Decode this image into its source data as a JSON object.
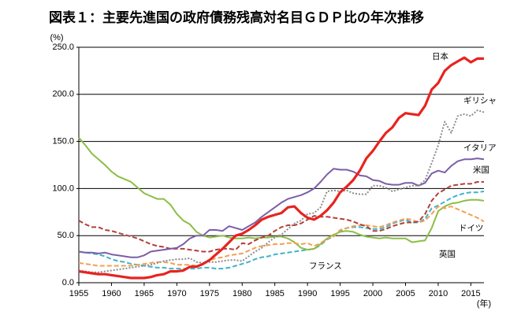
{
  "chart_data": {
    "type": "line",
    "title": "図表１：主要先進国の政府債務残高対名目ＧＤＰ比の年次推移",
    "y_unit_label": "(%)",
    "x_unit_label": "(年)",
    "x": [
      1955,
      1956,
      1957,
      1958,
      1959,
      1960,
      1961,
      1962,
      1963,
      1964,
      1965,
      1966,
      1967,
      1968,
      1969,
      1970,
      1971,
      1972,
      1973,
      1974,
      1975,
      1976,
      1977,
      1978,
      1979,
      1980,
      1981,
      1982,
      1983,
      1984,
      1985,
      1986,
      1987,
      1988,
      1989,
      1990,
      1991,
      1992,
      1993,
      1994,
      1995,
      1996,
      1997,
      1998,
      1999,
      2000,
      2001,
      2002,
      2003,
      2004,
      2005,
      2006,
      2007,
      2008,
      2009,
      2010,
      2011,
      2012,
      2013,
      2014,
      2015,
      2016,
      2017
    ],
    "xlim": [
      1955,
      2017
    ],
    "xticks": [
      1955,
      1960,
      1965,
      1970,
      1975,
      1980,
      1985,
      1990,
      1995,
      2000,
      2005,
      2010,
      2015
    ],
    "ylim": [
      0,
      250
    ],
    "yticks": [
      {
        "value": 0,
        "label": "0.0"
      },
      {
        "value": 50,
        "label": "50.0"
      },
      {
        "value": 100,
        "label": "100.0"
      },
      {
        "value": 150,
        "label": "150.0"
      },
      {
        "value": 200,
        "label": "200.0"
      },
      {
        "value": 250,
        "label": "250.0"
      }
    ],
    "grid": true,
    "series": [
      {
        "name": "日本",
        "color": "#e8231f",
        "line_style": "bold",
        "values": [
          12,
          11,
          10,
          9,
          9,
          8,
          7,
          6,
          5,
          5,
          5,
          6,
          8,
          9,
          12,
          12,
          13,
          17,
          17,
          20,
          24,
          30,
          36,
          43,
          50,
          52,
          56,
          61,
          67,
          70,
          72,
          74,
          80,
          81,
          74,
          69,
          67,
          71,
          77,
          85,
          96,
          102,
          109,
          119,
          132,
          140,
          150,
          159,
          165,
          175,
          180,
          179,
          178,
          188,
          205,
          212,
          225,
          231,
          235,
          239,
          234,
          238,
          238
        ]
      },
      {
        "name": "ギリシャ",
        "color": "#8c8c8c",
        "line_style": "dotted",
        "values": [
          13,
          12,
          11,
          11,
          12,
          13,
          14,
          15,
          16,
          17,
          18,
          19,
          21,
          23,
          24,
          25,
          25,
          26,
          22,
          21,
          22,
          22,
          23,
          24,
          24,
          23,
          28,
          33,
          37,
          43,
          48,
          51,
          57,
          63,
          66,
          73,
          74,
          80,
          97,
          98,
          97,
          98,
          95,
          94,
          94,
          103,
          103,
          101,
          97,
          99,
          101,
          103,
          103,
          109,
          127,
          146,
          171,
          159,
          177,
          179,
          177,
          183,
          181
        ]
      },
      {
        "name": "イタリア",
        "color": "#7b5ea7",
        "line_style": "solid",
        "values": [
          33,
          32,
          32,
          31,
          32,
          30,
          29,
          28,
          27,
          27,
          29,
          33,
          34,
          35,
          36,
          37,
          41,
          47,
          50,
          50,
          56,
          56,
          55,
          60,
          58,
          56,
          60,
          64,
          70,
          75,
          80,
          85,
          89,
          91,
          93,
          96,
          100,
          107,
          115,
          121,
          120,
          120,
          118,
          114,
          113,
          109,
          108,
          105,
          104,
          104,
          106,
          106,
          103,
          106,
          116,
          119,
          117,
          124,
          129,
          131,
          131,
          132,
          131
        ]
      },
      {
        "name": "米国",
        "color": "#b2403a",
        "line_style": "dashed",
        "values": [
          66,
          62,
          59,
          59,
          56,
          55,
          53,
          51,
          49,
          47,
          44,
          41,
          39,
          38,
          36,
          36,
          36,
          35,
          34,
          33,
          33,
          35,
          36,
          36,
          35,
          42,
          41,
          45,
          48,
          50,
          55,
          59,
          61,
          61,
          63,
          67,
          71,
          70,
          70,
          69,
          68,
          67,
          65,
          62,
          60,
          55,
          55,
          57,
          60,
          62,
          64,
          64,
          65,
          73,
          87,
          95,
          99,
          103,
          104,
          105,
          105,
          107,
          107
        ]
      },
      {
        "name": "ドイツ",
        "color": "#f2a054",
        "line_style": "dashed",
        "values": [
          21,
          20,
          19,
          18,
          18,
          18,
          18,
          18,
          18,
          19,
          20,
          21,
          22,
          22,
          21,
          19,
          19,
          19,
          18,
          19,
          24,
          26,
          27,
          29,
          30,
          31,
          34,
          37,
          39,
          40,
          41,
          41,
          42,
          42,
          41,
          42,
          39,
          42,
          47,
          49,
          56,
          58,
          60,
          61,
          61,
          60,
          59,
          61,
          64,
          66,
          68,
          67,
          64,
          66,
          73,
          81,
          79,
          81,
          78,
          75,
          72,
          69,
          65
        ]
      },
      {
        "name": "英国",
        "color": "#8cbe46",
        "line_style": "solid",
        "values": [
          154,
          146,
          137,
          131,
          125,
          118,
          113,
          110,
          107,
          101,
          95,
          92,
          89,
          89,
          83,
          73,
          66,
          62,
          54,
          50,
          48,
          49,
          50,
          48,
          47,
          47,
          48,
          47,
          48,
          48,
          49,
          49,
          47,
          43,
          37,
          35,
          36,
          41,
          47,
          51,
          54,
          55,
          54,
          51,
          49,
          48,
          47,
          48,
          47,
          47,
          47,
          43,
          44,
          45,
          58,
          76,
          81,
          84,
          85,
          87,
          88,
          88,
          87
        ]
      },
      {
        "name": "フランス",
        "color": "#3fb4c8",
        "line_style": "dashed",
        "values": [
          33,
          32,
          31,
          30,
          28,
          25,
          23,
          22,
          20,
          19,
          18,
          17,
          16,
          16,
          15,
          15,
          15,
          15,
          15,
          16,
          16,
          15,
          15,
          16,
          18,
          20,
          22,
          25,
          27,
          28,
          30,
          31,
          32,
          33,
          34,
          35,
          36,
          40,
          46,
          49,
          55,
          58,
          59,
          59,
          58,
          57,
          57,
          59,
          63,
          65,
          67,
          64,
          64,
          68,
          79,
          82,
          86,
          90,
          93,
          95,
          96,
          96,
          97
        ]
      }
    ]
  }
}
